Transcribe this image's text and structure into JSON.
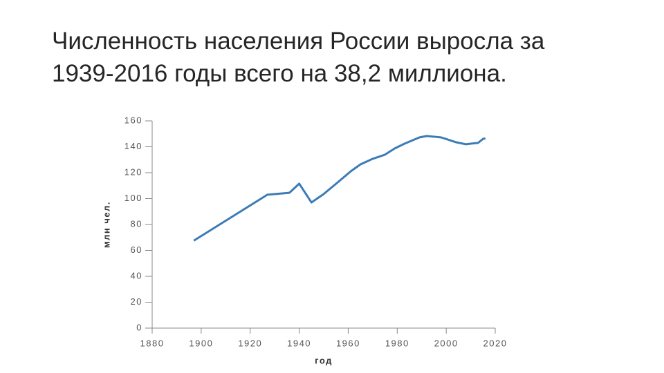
{
  "chart_data": {
    "type": "line",
    "title": "Численность населения России выросла за 1939-2016 годы всего на 38,2 миллиона.",
    "xlabel": "год",
    "ylabel": "млн чел.",
    "x": [
      1897,
      1927,
      1936,
      1940,
      1945,
      1950,
      1956,
      1961,
      1965,
      1970,
      1975,
      1979,
      1983,
      1989,
      1992,
      1998,
      2004,
      2008,
      2010,
      2013,
      2015,
      2016
    ],
    "values": [
      67.5,
      103,
      104.5,
      111.5,
      97,
      103.5,
      113,
      121,
      126.4,
      130.7,
      133.9,
      138.7,
      142.4,
      147.2,
      148.3,
      147.2,
      143.5,
      141.9,
      142.4,
      143,
      146.1,
      146.5
    ],
    "color": "#3b7cb6",
    "xlim": [
      1880,
      2020
    ],
    "xticks": [
      1880,
      1900,
      1920,
      1940,
      1960,
      1980,
      2000,
      2020
    ],
    "ylim": [
      0,
      160
    ],
    "yticks": [
      0,
      20,
      40,
      60,
      80,
      100,
      120,
      140,
      160
    ],
    "grid": false
  }
}
